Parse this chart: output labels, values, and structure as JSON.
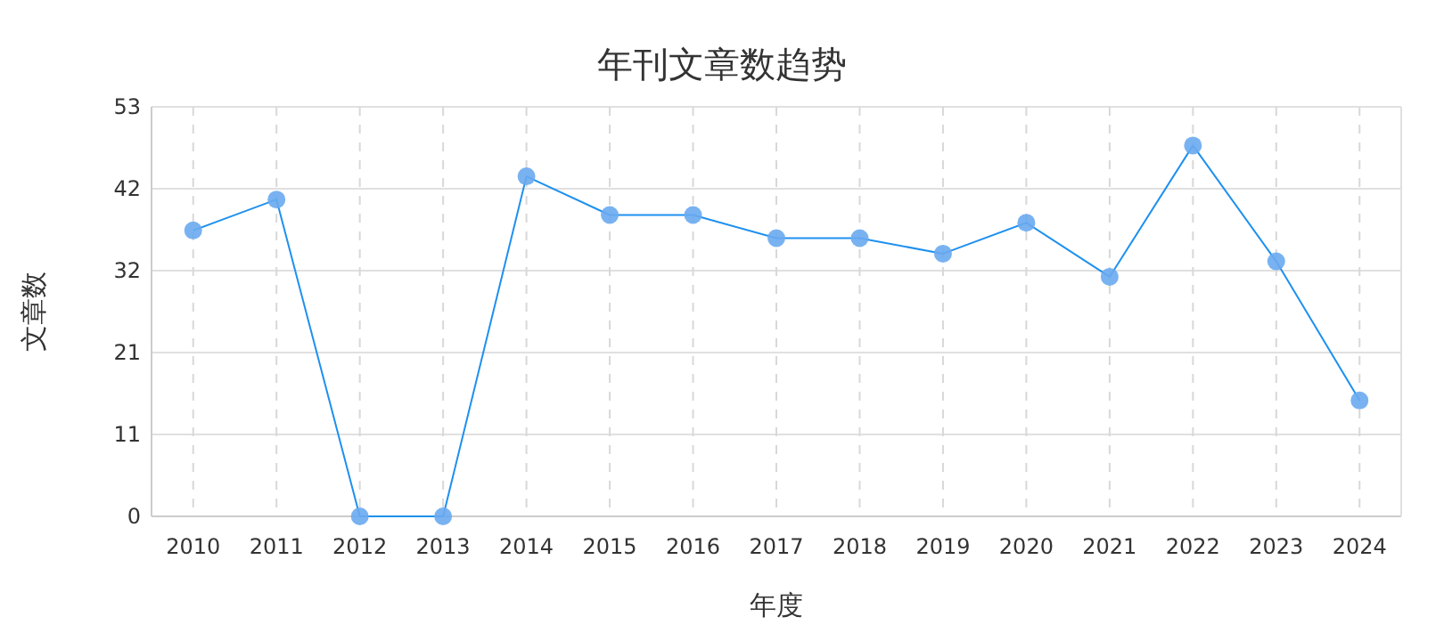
{
  "chart_data": {
    "type": "line",
    "title": "年刊文章数趋势",
    "xlabel": "年度",
    "ylabel": "文章数",
    "categories": [
      "2010",
      "2011",
      "2012",
      "2013",
      "2014",
      "2015",
      "2016",
      "2017",
      "2018",
      "2019",
      "2020",
      "2021",
      "2022",
      "2023",
      "2024"
    ],
    "series": [
      {
        "color": "#1e90ef",
        "values": [
          37,
          41,
          0,
          0,
          44,
          39,
          39,
          36,
          36,
          34,
          38,
          31,
          48,
          33,
          15
        ]
      }
    ],
    "ylim": [
      0,
      53
    ],
    "yticks": [
      0,
      {
        "value": 10.6,
        "label": "11"
      },
      {
        "value": 21.2,
        "label": "21"
      },
      {
        "value": 31.8,
        "label": "32"
      },
      {
        "value": 42.4,
        "label": "42"
      },
      53
    ],
    "grid": true,
    "marker": "circle"
  }
}
